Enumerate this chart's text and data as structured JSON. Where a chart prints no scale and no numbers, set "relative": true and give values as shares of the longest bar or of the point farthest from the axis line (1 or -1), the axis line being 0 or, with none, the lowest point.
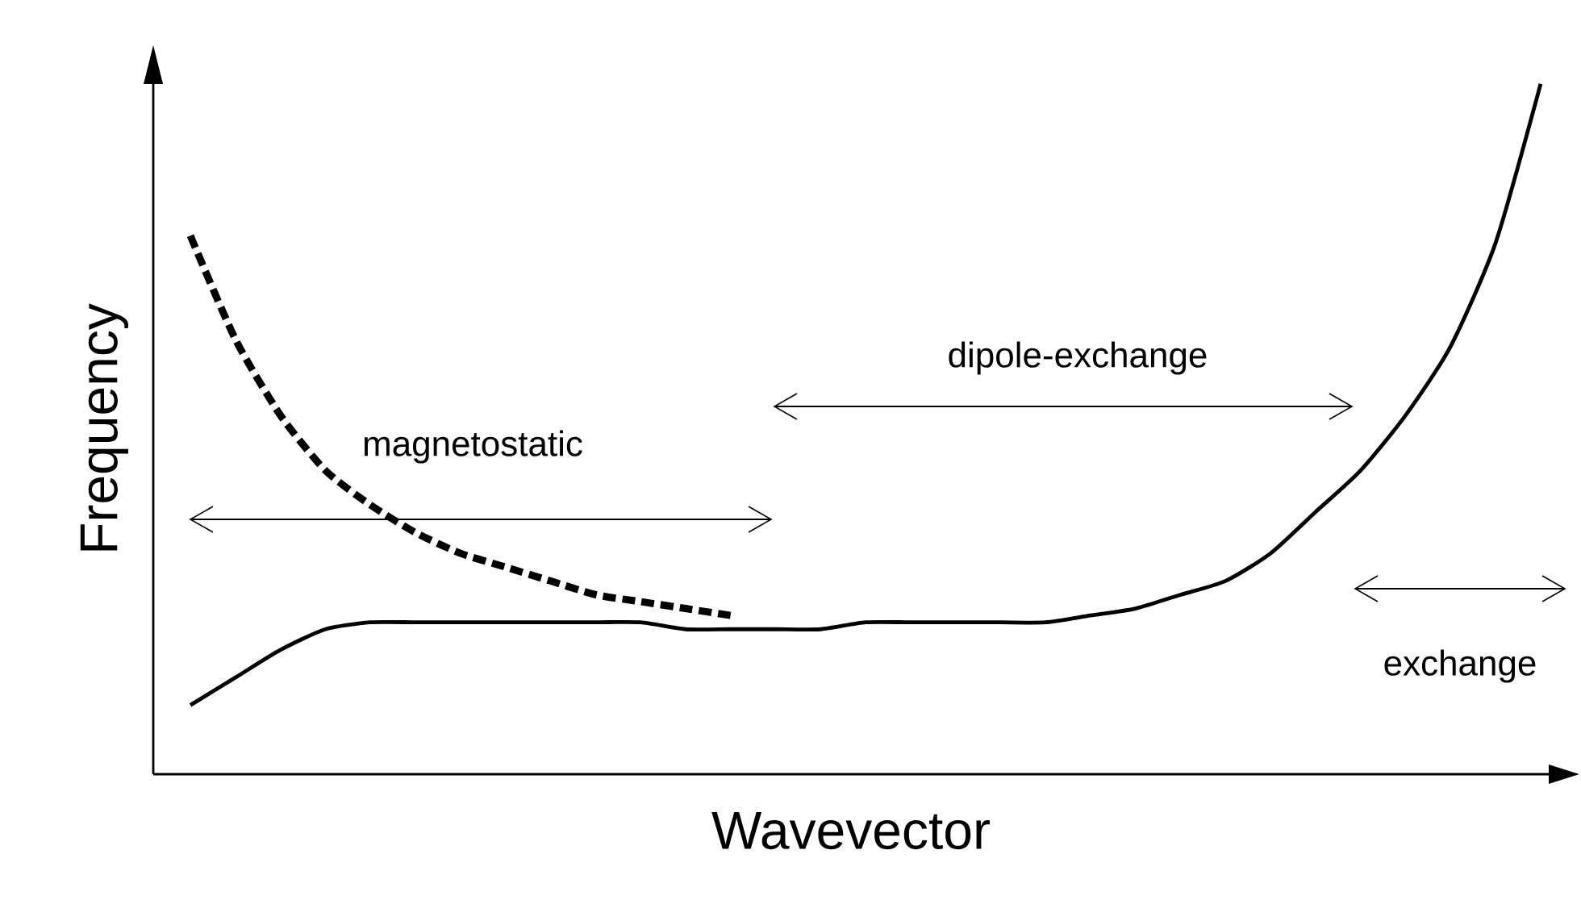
{
  "chart_data": {
    "type": "line",
    "relative": true,
    "xlabel": "Wavevector",
    "ylabel": "Frequency",
    "legend": false,
    "grid": false,
    "marker": "none",
    "categories": [
      null,
      null,
      null,
      null,
      null,
      null,
      null,
      null,
      null,
      null,
      null,
      null,
      null,
      null,
      null,
      null,
      null,
      null,
      null,
      null,
      null,
      null,
      null,
      null,
      null,
      null,
      null,
      null,
      null,
      null,
      null
    ],
    "series": [
      {
        "color": "#000000",
        "line_style": "solid",
        "values": [
          0.1,
          0.14,
          0.18,
          0.21,
          0.22,
          0.22,
          0.22,
          0.22,
          0.22,
          0.22,
          0.22,
          0.21,
          0.21,
          0.21,
          0.21,
          0.22,
          0.22,
          0.22,
          0.22,
          0.22,
          0.23,
          0.24,
          0.26,
          0.28,
          0.32,
          0.38,
          0.44,
          0.52,
          0.62,
          0.77,
          1
        ]
      },
      {
        "color": "#000000",
        "line_style": "dashed",
        "values": [
          0.78,
          0.63,
          0.52,
          0.44,
          0.39,
          0.35,
          0.32,
          0.3,
          0.28,
          0.26,
          0.25,
          0.24,
          0.23,
          null,
          null,
          null,
          null,
          null,
          null,
          null,
          null,
          null,
          null,
          null,
          null,
          null,
          null,
          null,
          null,
          null,
          null
        ]
      }
    ],
    "annotations": [
      "magnetostatic",
      "dipole-exchange",
      "exchange"
    ]
  }
}
